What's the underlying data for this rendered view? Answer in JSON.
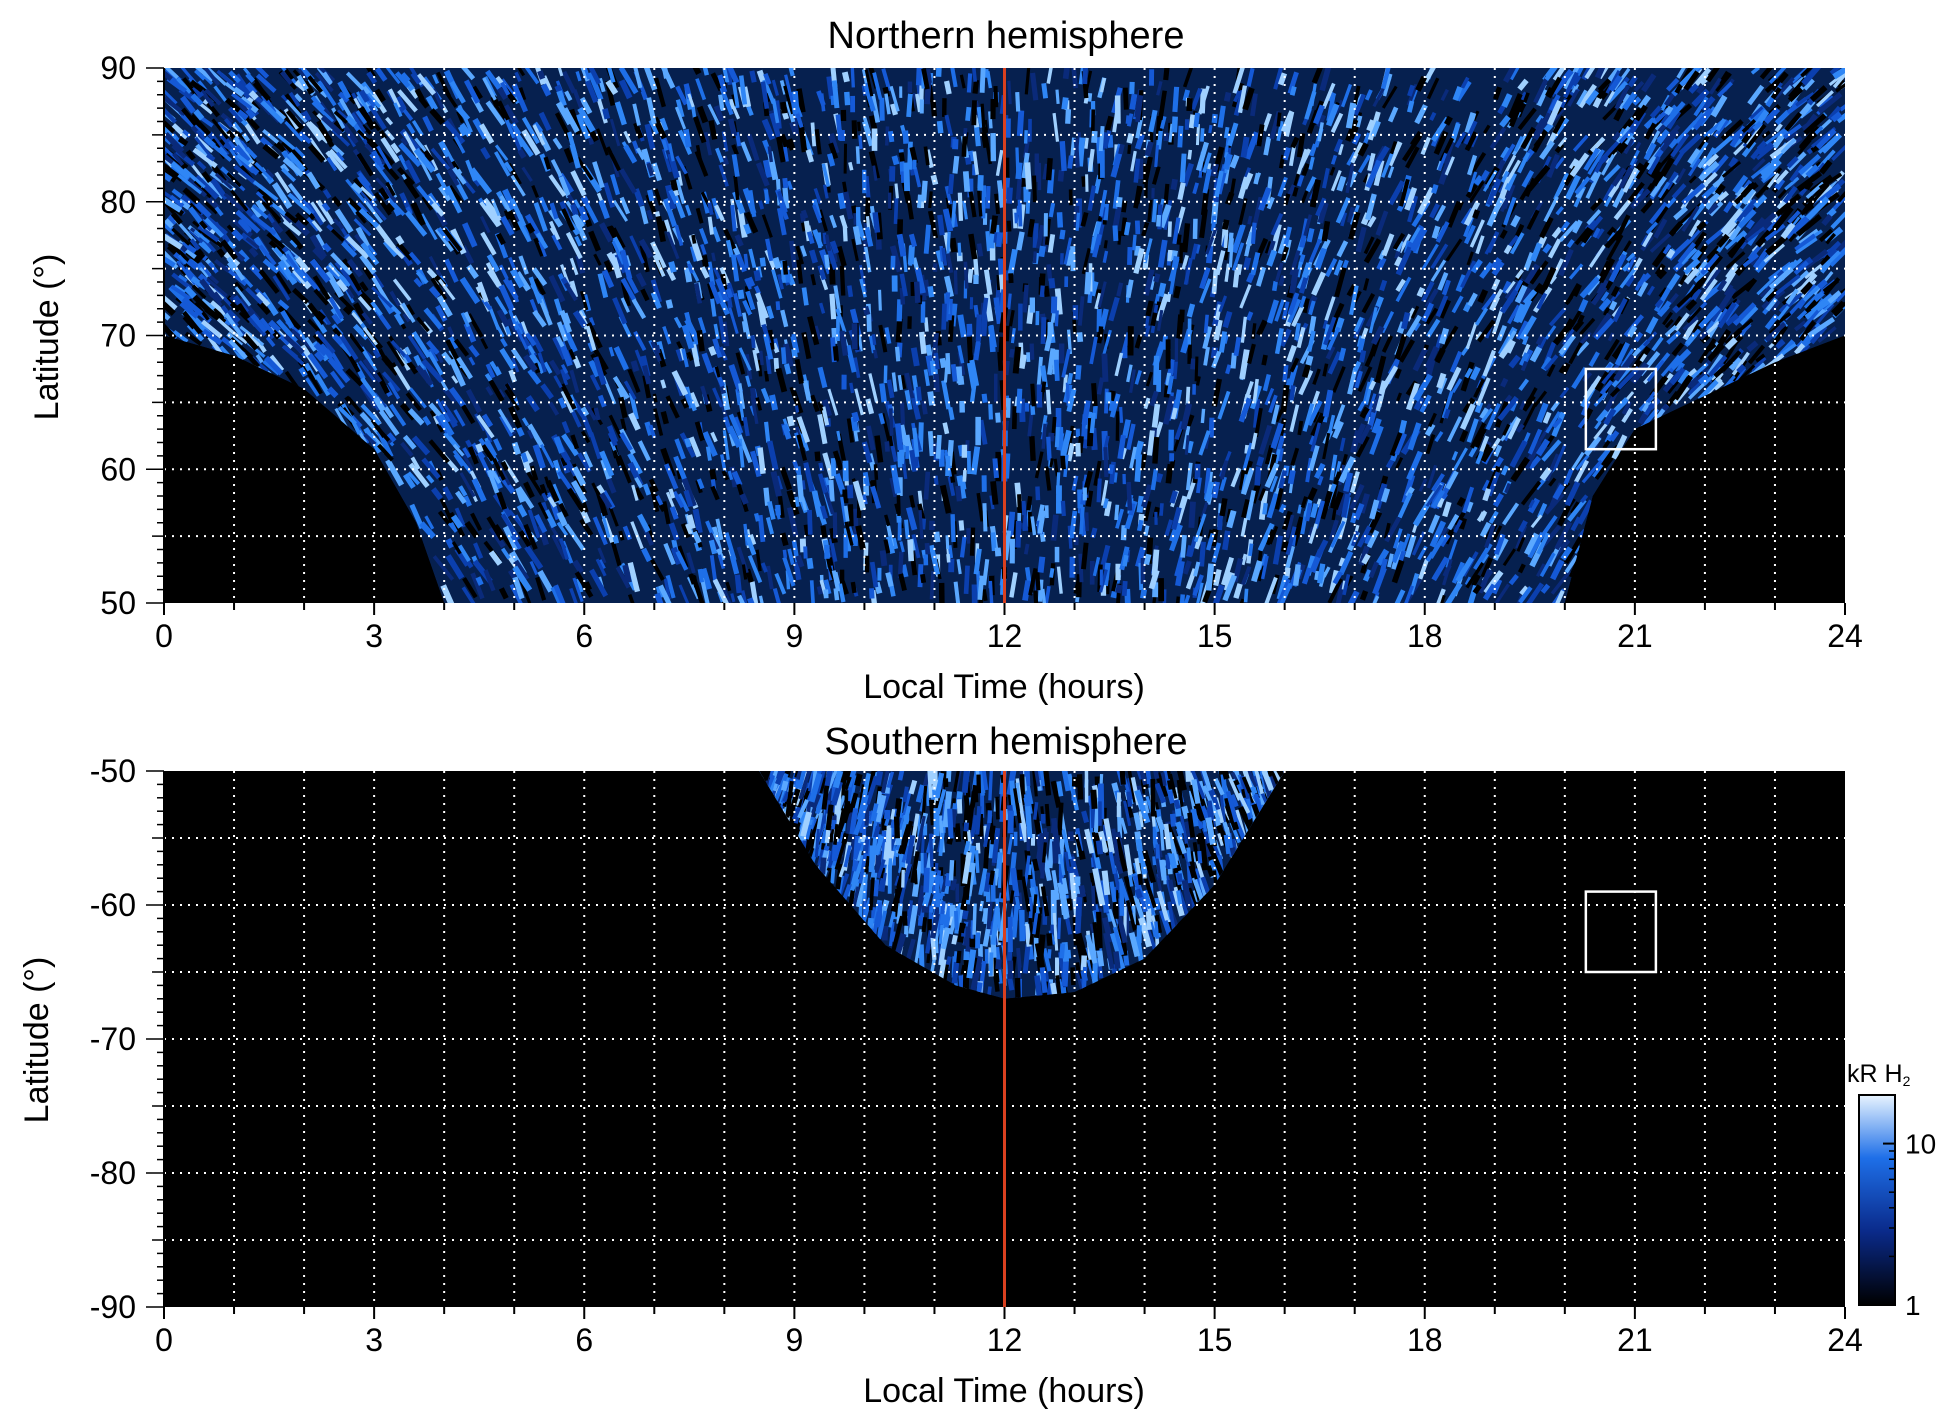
{
  "colors": {
    "background_plot": "#000000",
    "emission_blue": "#1e6fe8",
    "emission_light": "#9fd0ff",
    "noon_line": "#d9401f",
    "grid": "#ffffff",
    "box": "#ffffff"
  },
  "chart_data": [
    {
      "type": "heatmap",
      "title": "Northern hemisphere",
      "xlabel": "Local Time (hours)",
      "ylabel": "Latitude (°)",
      "xlim": [
        0,
        24
      ],
      "ylim": [
        50,
        90
      ],
      "xticks": [
        0,
        3,
        6,
        9,
        12,
        15,
        18,
        21,
        24
      ],
      "yticks": [
        50,
        60,
        70,
        80,
        90
      ],
      "xgrid": [
        1,
        2,
        3,
        4,
        5,
        6,
        7,
        8,
        9,
        10,
        11,
        13,
        14,
        15,
        16,
        17,
        18,
        19,
        20,
        21,
        22,
        23
      ],
      "ygrid": [
        55,
        60,
        65,
        70,
        75,
        80,
        85
      ],
      "grid": true,
      "noon_line_x": 12,
      "box": {
        "x": [
          20.3,
          21.3
        ],
        "y": [
          61.5,
          67.5
        ]
      },
      "coverage_boundary": [
        [
          0,
          70
        ],
        [
          1,
          68.5
        ],
        [
          2,
          66
        ],
        [
          3,
          61.5
        ],
        [
          3.6,
          56
        ],
        [
          4,
          50
        ],
        [
          20,
          50
        ],
        [
          20.4,
          58
        ],
        [
          21,
          63
        ],
        [
          22,
          65.5
        ],
        [
          23,
          68
        ],
        [
          24,
          70
        ]
      ]
    },
    {
      "type": "heatmap",
      "title": "Southern hemisphere",
      "xlabel": "Local Time (hours)",
      "ylabel": "Latitude (°)",
      "xlim": [
        0,
        24
      ],
      "ylim": [
        -90,
        -50
      ],
      "xticks": [
        0,
        3,
        6,
        9,
        12,
        15,
        18,
        21,
        24
      ],
      "yticks": [
        -90,
        -80,
        -70,
        -60,
        -50
      ],
      "xgrid": [
        1,
        2,
        3,
        4,
        5,
        6,
        7,
        8,
        9,
        10,
        11,
        13,
        14,
        15,
        16,
        17,
        18,
        19,
        20,
        21,
        22,
        23
      ],
      "ygrid": [
        -85,
        -80,
        -75,
        -70,
        -65,
        -60,
        -55
      ],
      "grid": true,
      "noon_line_x": 12,
      "box": {
        "x": [
          20.3,
          21.3
        ],
        "y": [
          -65,
          -59
        ]
      },
      "coverage_boundary": [
        [
          8.5,
          -50
        ],
        [
          9.3,
          -57
        ],
        [
          10.3,
          -63
        ],
        [
          11.3,
          -66
        ],
        [
          12,
          -67
        ],
        [
          13,
          -66.5
        ],
        [
          14,
          -64
        ],
        [
          15,
          -58.5
        ],
        [
          16,
          -50
        ]
      ]
    }
  ],
  "colorbar": {
    "label_unit": "kR H",
    "label_subscript": "2",
    "ticks": [
      {
        "value": 1,
        "label": "1"
      },
      {
        "value": 10,
        "label": "10"
      }
    ],
    "range": [
      1,
      20
    ],
    "scale": "log"
  }
}
